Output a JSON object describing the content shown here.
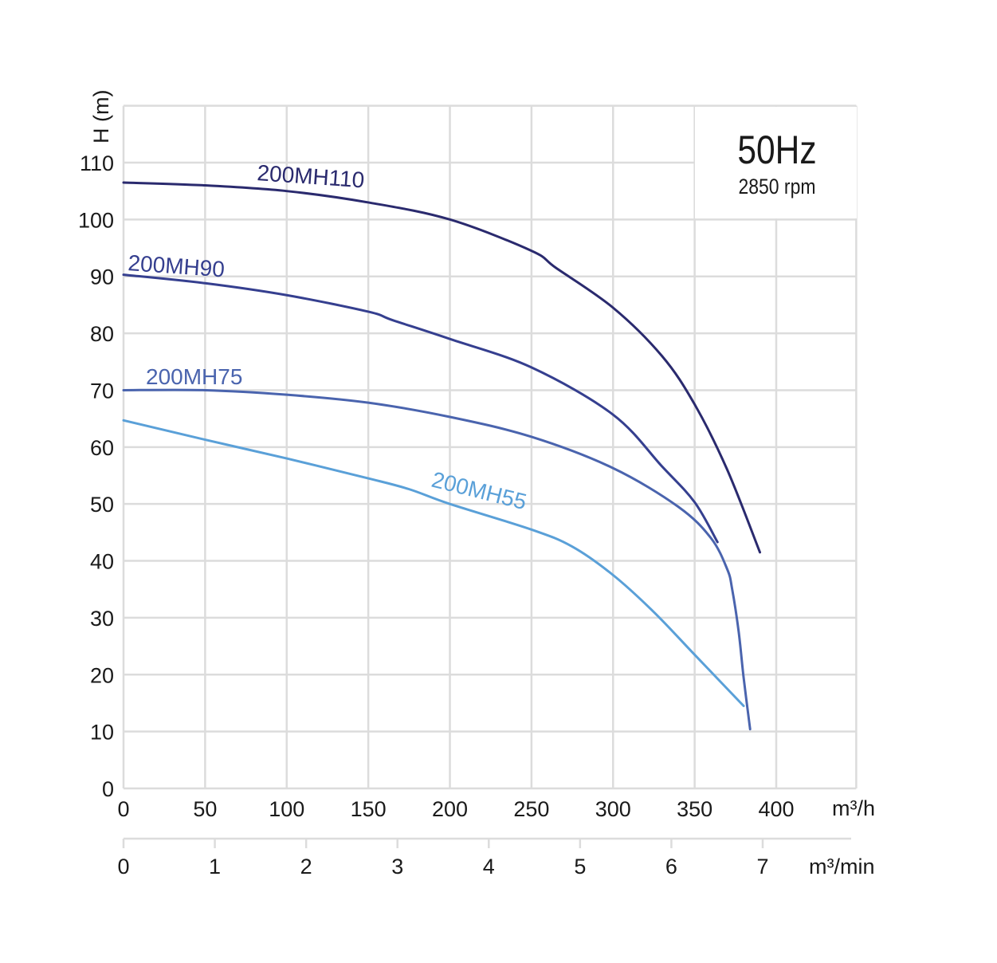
{
  "chart_data": {
    "type": "line",
    "title": "50Hz",
    "subtitle": "2850 rpm",
    "xlabel": "m³/h",
    "x2label": "m³/min",
    "ylabel": "H (m)",
    "xlim": [
      0,
      450
    ],
    "ylim": [
      0,
      120
    ],
    "x_ticks": [
      0,
      50,
      100,
      150,
      200,
      250,
      300,
      350,
      400
    ],
    "x2_ticks": [
      0,
      1,
      2,
      3,
      4,
      5,
      6,
      7
    ],
    "y_ticks": [
      0,
      10,
      20,
      30,
      40,
      50,
      60,
      70,
      80,
      90,
      100,
      110
    ],
    "grid": true,
    "series": [
      {
        "name": "200MH110",
        "color": "#2a2a6e",
        "x": [
          0,
          50,
          100,
          150,
          200,
          250,
          265,
          300,
          330,
          350,
          370,
          390
        ],
        "y": [
          106.5,
          106,
          105,
          103,
          100,
          94.5,
          91.5,
          84.5,
          76,
          67.5,
          56,
          41.5
        ]
      },
      {
        "name": "200MH90",
        "color": "#353f8f",
        "x": [
          0,
          50,
          100,
          150,
          165,
          200,
          250,
          300,
          330,
          350,
          364
        ],
        "y": [
          90.3,
          88.8,
          86.7,
          83.8,
          82.3,
          79,
          74,
          65.7,
          56.6,
          50.3,
          43.3
        ]
      },
      {
        "name": "200MH75",
        "color": "#4a64ae",
        "x": [
          0,
          50,
          100,
          150,
          200,
          250,
          300,
          340,
          360,
          370,
          373,
          377,
          380,
          384
        ],
        "y": [
          70,
          70,
          69.2,
          67.8,
          65.3,
          61.8,
          56.3,
          49.5,
          44,
          38.5,
          35,
          27.5,
          19.5,
          10.4
        ]
      },
      {
        "name": "200MH55",
        "color": "#5aa0d8",
        "x": [
          0,
          50,
          100,
          150,
          175,
          200,
          250,
          275,
          300,
          325,
          350,
          380
        ],
        "y": [
          64.7,
          61.3,
          58,
          54.5,
          52.6,
          50,
          45.5,
          42.5,
          37.5,
          31,
          23.5,
          14.5
        ]
      }
    ]
  }
}
